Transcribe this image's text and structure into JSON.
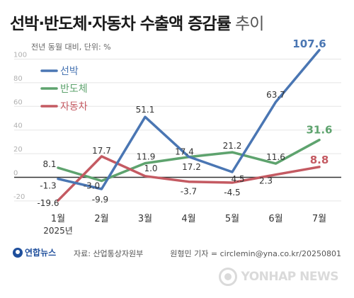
{
  "title_main": "선박·반도체·자동차 수출액 증감률",
  "title_sub": " 추이",
  "unit_note": "전년 동월 대비, 단위: %",
  "colors": {
    "ship": "#4a76b3",
    "semi": "#5ea36e",
    "car": "#c45a62",
    "axis": "#333333",
    "grid": "#e5e5e5",
    "tick": "#b0b0b0"
  },
  "chart_data": {
    "type": "line",
    "categories": [
      "1월",
      "2월",
      "3월",
      "4월",
      "5월",
      "6월",
      "7월"
    ],
    "first_category_sub": "2025년",
    "y_ticks": [
      100,
      80,
      60,
      40,
      20,
      0,
      -20
    ],
    "ylim": [
      -28,
      110
    ],
    "grid": true,
    "legend_position": "top-left",
    "series": [
      {
        "key": "ship",
        "name": "선박",
        "values": [
          -1.3,
          -9.9,
          51.1,
          17.4,
          4.5,
          63.7,
          107.6
        ],
        "labels": [
          "-1.3",
          "-9.9",
          "51.1",
          "17.4",
          "4.5",
          "63.7",
          "107.6"
        ]
      },
      {
        "key": "semi",
        "name": "반도체",
        "values": [
          8.1,
          -3.0,
          11.9,
          17.2,
          21.2,
          11.6,
          31.6
        ],
        "labels": [
          "8.1",
          "-3.0",
          "11.9",
          "17.2",
          "21.2",
          "11.6",
          "31.6"
        ]
      },
      {
        "key": "car",
        "name": "자동차",
        "values": [
          -19.6,
          17.7,
          1.0,
          -3.7,
          -4.5,
          2.3,
          8.8
        ],
        "labels": [
          "-19.6",
          "17.7",
          "1.0",
          "-3.7",
          "-4.5",
          "2.3",
          "8.8"
        ]
      }
    ]
  },
  "footer": {
    "logo": "연합뉴스",
    "source": "자료: 산업통상자원부",
    "credit": "원형민 기자 = circlemin@yna.co.kr/20250801"
  },
  "watermark": "YONHAP NEWS"
}
